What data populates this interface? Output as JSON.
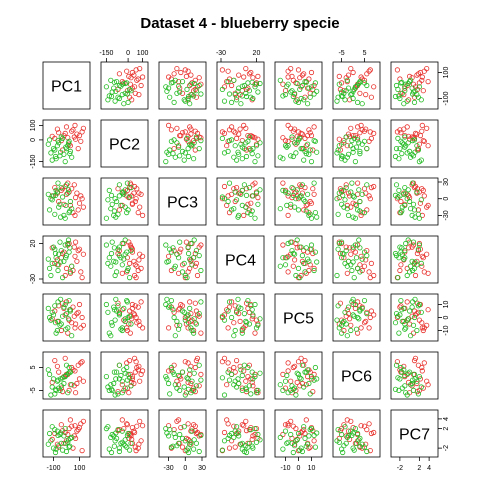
{
  "chart_data": {
    "type": "scatter",
    "title": "Dataset 4 - blueberry specie",
    "matrix": "pairs",
    "variables": [
      "PC1",
      "PC2",
      "PC3",
      "PC4",
      "PC5",
      "PC6",
      "PC7"
    ],
    "ranges": [
      [
        -150,
        150
      ],
      [
        -160,
        110
      ],
      [
        -40,
        30
      ],
      [
        -30,
        25
      ],
      [
        -15,
        15
      ],
      [
        -7,
        10
      ],
      [
        -3,
        5
      ]
    ],
    "axis_ticks": {
      "PC1": [
        "-100",
        "100"
      ],
      "PC2": [
        "-150",
        "0",
        "100"
      ],
      "PC3": [
        "-30",
        "0",
        "30"
      ],
      "PC4": [
        "-30",
        "20"
      ],
      "PC5": [
        "-10",
        "0",
        "10"
      ],
      "PC6": [
        "-5",
        "5"
      ],
      "PC7": [
        "-2",
        "2",
        "4"
      ]
    },
    "axis_tick_values": {
      "PC1": [
        -100,
        100
      ],
      "PC2": [
        -150,
        0,
        100
      ],
      "PC3": [
        -30,
        0,
        30
      ],
      "PC4": [
        -30,
        20
      ],
      "PC5": [
        -10,
        0,
        10
      ],
      "PC6": [
        -5,
        5
      ],
      "PC7": [
        -2,
        2,
        4
      ]
    },
    "groups": [
      {
        "color": "#e8322d",
        "points": [
          [
            80,
            40,
            10,
            -5,
            3,
            -2,
            1.5
          ],
          [
            40,
            60,
            18,
            -12,
            -4,
            5,
            2.5
          ],
          [
            -20,
            30,
            -10,
            8,
            7,
            1,
            -1
          ],
          [
            110,
            -10,
            5,
            -20,
            -8,
            7,
            3
          ],
          [
            60,
            20,
            25,
            15,
            1,
            -3,
            0.5
          ],
          [
            -60,
            50,
            -5,
            -10,
            9,
            3,
            -1.8
          ],
          [
            20,
            -30,
            12,
            20,
            -2,
            -5,
            2
          ],
          [
            -90,
            10,
            20,
            -8,
            5,
            8,
            1
          ],
          [
            130,
            80,
            -15,
            5,
            -6,
            -1,
            3.5
          ],
          [
            0,
            90,
            8,
            -15,
            12,
            2,
            -0.5
          ],
          [
            90,
            -60,
            -20,
            10,
            4,
            6,
            1.8
          ],
          [
            -40,
            -5,
            15,
            0,
            -10,
            -4,
            2.8
          ],
          [
            50,
            70,
            -25,
            -18,
            8,
            4,
            -2
          ],
          [
            70,
            5,
            2,
            22,
            -5,
            -6,
            0
          ],
          [
            -10,
            45,
            22,
            -25,
            2,
            9,
            1.2
          ],
          [
            100,
            30,
            -8,
            12,
            10,
            0,
            2.2
          ],
          [
            -70,
            75,
            10,
            -3,
            -3,
            5.5,
            -1.2
          ],
          [
            30,
            -40,
            -12,
            -22,
            6,
            -2.5,
            3.8
          ],
          [
            10,
            15,
            28,
            18,
            -12,
            2,
            0.8
          ],
          [
            120,
            55,
            0,
            -28,
            0,
            7.5,
            -2.5
          ],
          [
            -30,
            -70,
            18,
            6,
            11,
            -5.5,
            1.6
          ],
          [
            65,
            100,
            -30,
            2,
            -8,
            3.5,
            2.6
          ],
          [
            -110,
            25,
            5,
            14,
            -1,
            -1.5,
            -0.2
          ]
        ]
      },
      {
        "color": "#22bb22",
        "points": [
          [
            -60,
            -20,
            -15,
            5,
            -3,
            -4,
            -1.5
          ],
          [
            -100,
            -60,
            5,
            15,
            2,
            0,
            -2
          ],
          [
            -20,
            -100,
            -30,
            -5,
            8,
            -2,
            0.5
          ],
          [
            10,
            -40,
            10,
            20,
            -8,
            -6,
            -0.8
          ],
          [
            -130,
            0,
            -20,
            -15,
            0,
            2,
            1
          ],
          [
            -80,
            -130,
            15,
            0,
            -12,
            -5,
            -2.2
          ],
          [
            30,
            -80,
            -5,
            -20,
            5,
            3,
            0
          ],
          [
            -40,
            20,
            20,
            10,
            -5,
            -3,
            -1
          ],
          [
            -10,
            -150,
            -35,
            18,
            10,
            1,
            2
          ],
          [
            -120,
            -90,
            0,
            -25,
            -2,
            -7,
            -0.5
          ],
          [
            20,
            -10,
            -25,
            8,
            13,
            5,
            -1.8
          ],
          [
            -70,
            -40,
            12,
            -10,
            -10,
            -1,
            1.5
          ],
          [
            0,
            -60,
            25,
            3,
            3,
            6,
            -2.7
          ],
          [
            -50,
            -110,
            -10,
            22,
            -6,
            -5,
            0.8
          ],
          [
            -140,
            -30,
            8,
            -2,
            7,
            4,
            -1.2
          ],
          [
            40,
            -120,
            -18,
            -12,
            -14,
            -2.5,
            0.2
          ],
          [
            -30,
            10,
            3,
            -28,
            1,
            0.5,
            -2.4
          ],
          [
            -90,
            -70,
            -28,
            12,
            9,
            -6.5,
            1.8
          ],
          [
            15,
            -20,
            16,
            25,
            -1,
            2.5,
            -0.3
          ],
          [
            -110,
            -140,
            -2,
            -8,
            4,
            -3.5,
            2.4
          ],
          [
            -5,
            -50,
            -12,
            0,
            -9,
            1.5,
            -1
          ],
          [
            -65,
            -5,
            28,
            -18,
            12,
            -0.5,
            0.6
          ],
          [
            25,
            -95,
            -22,
            14,
            6,
            3,
            -1.6
          ],
          [
            -85,
            -115,
            6,
            6,
            -4,
            -4.5,
            -2.9
          ],
          [
            -45,
            -85,
            -33,
            -6,
            14,
            0,
            1.1
          ]
        ]
      }
    ]
  }
}
